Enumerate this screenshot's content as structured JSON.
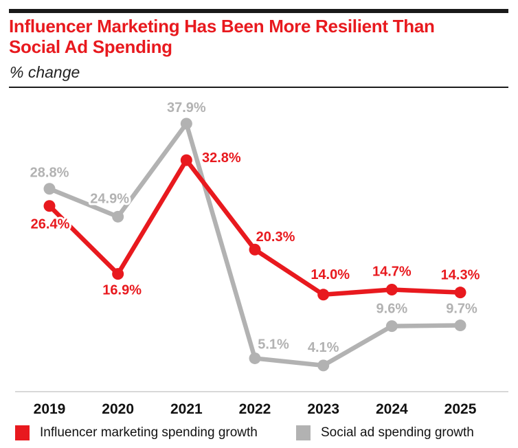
{
  "header": {
    "title_lines": [
      "Influencer Marketing Has Been More Resilient Than",
      "Social Ad Spending"
    ],
    "subtitle": "% change",
    "accent_color": "#e8191e",
    "text_color": "#1a1a1a"
  },
  "chart_data": {
    "type": "line",
    "title": "Influencer Marketing Has Been More Resilient Than Social Ad Spending",
    "ylabel": "% change",
    "categories": [
      "2019",
      "2020",
      "2021",
      "2022",
      "2023",
      "2024",
      "2025"
    ],
    "series": [
      {
        "name": "Social ad spending growth",
        "color": "#b2b2b2",
        "values": [
          28.8,
          24.9,
          37.9,
          5.1,
          4.1,
          9.6,
          9.7
        ],
        "labels": [
          "28.8%",
          "24.9%",
          "37.9%",
          "5.1%",
          "4.1%",
          "9.6%",
          "9.7%"
        ],
        "label_offsets": [
          [
            0,
            -24
          ],
          [
            -12,
            -27
          ],
          [
            0,
            -24
          ],
          [
            27,
            -21
          ],
          [
            0,
            -27
          ],
          [
            0,
            -26
          ],
          [
            2,
            -25
          ]
        ]
      },
      {
        "name": "Influencer marketing spending growth",
        "color": "#e8191e",
        "values": [
          26.4,
          16.9,
          32.8,
          20.3,
          14.0,
          14.7,
          14.3
        ],
        "labels": [
          "26.4%",
          "16.9%",
          "32.8%",
          "20.3%",
          "14.0%",
          "14.7%",
          "14.3%"
        ],
        "label_offsets": [
          [
            1,
            26
          ],
          [
            6,
            23
          ],
          [
            51,
            -4
          ],
          [
            30,
            -19
          ],
          [
            10,
            -30
          ],
          [
            0,
            -27
          ],
          [
            0,
            -26
          ]
        ]
      }
    ],
    "ylim": [
      0,
      40
    ],
    "grid": false,
    "legend_position": "bottom",
    "legend": [
      {
        "label": "Influencer marketing spending growth",
        "color": "#e8191e"
      },
      {
        "label": "Social ad spending growth",
        "color": "#b2b2b2"
      }
    ]
  }
}
